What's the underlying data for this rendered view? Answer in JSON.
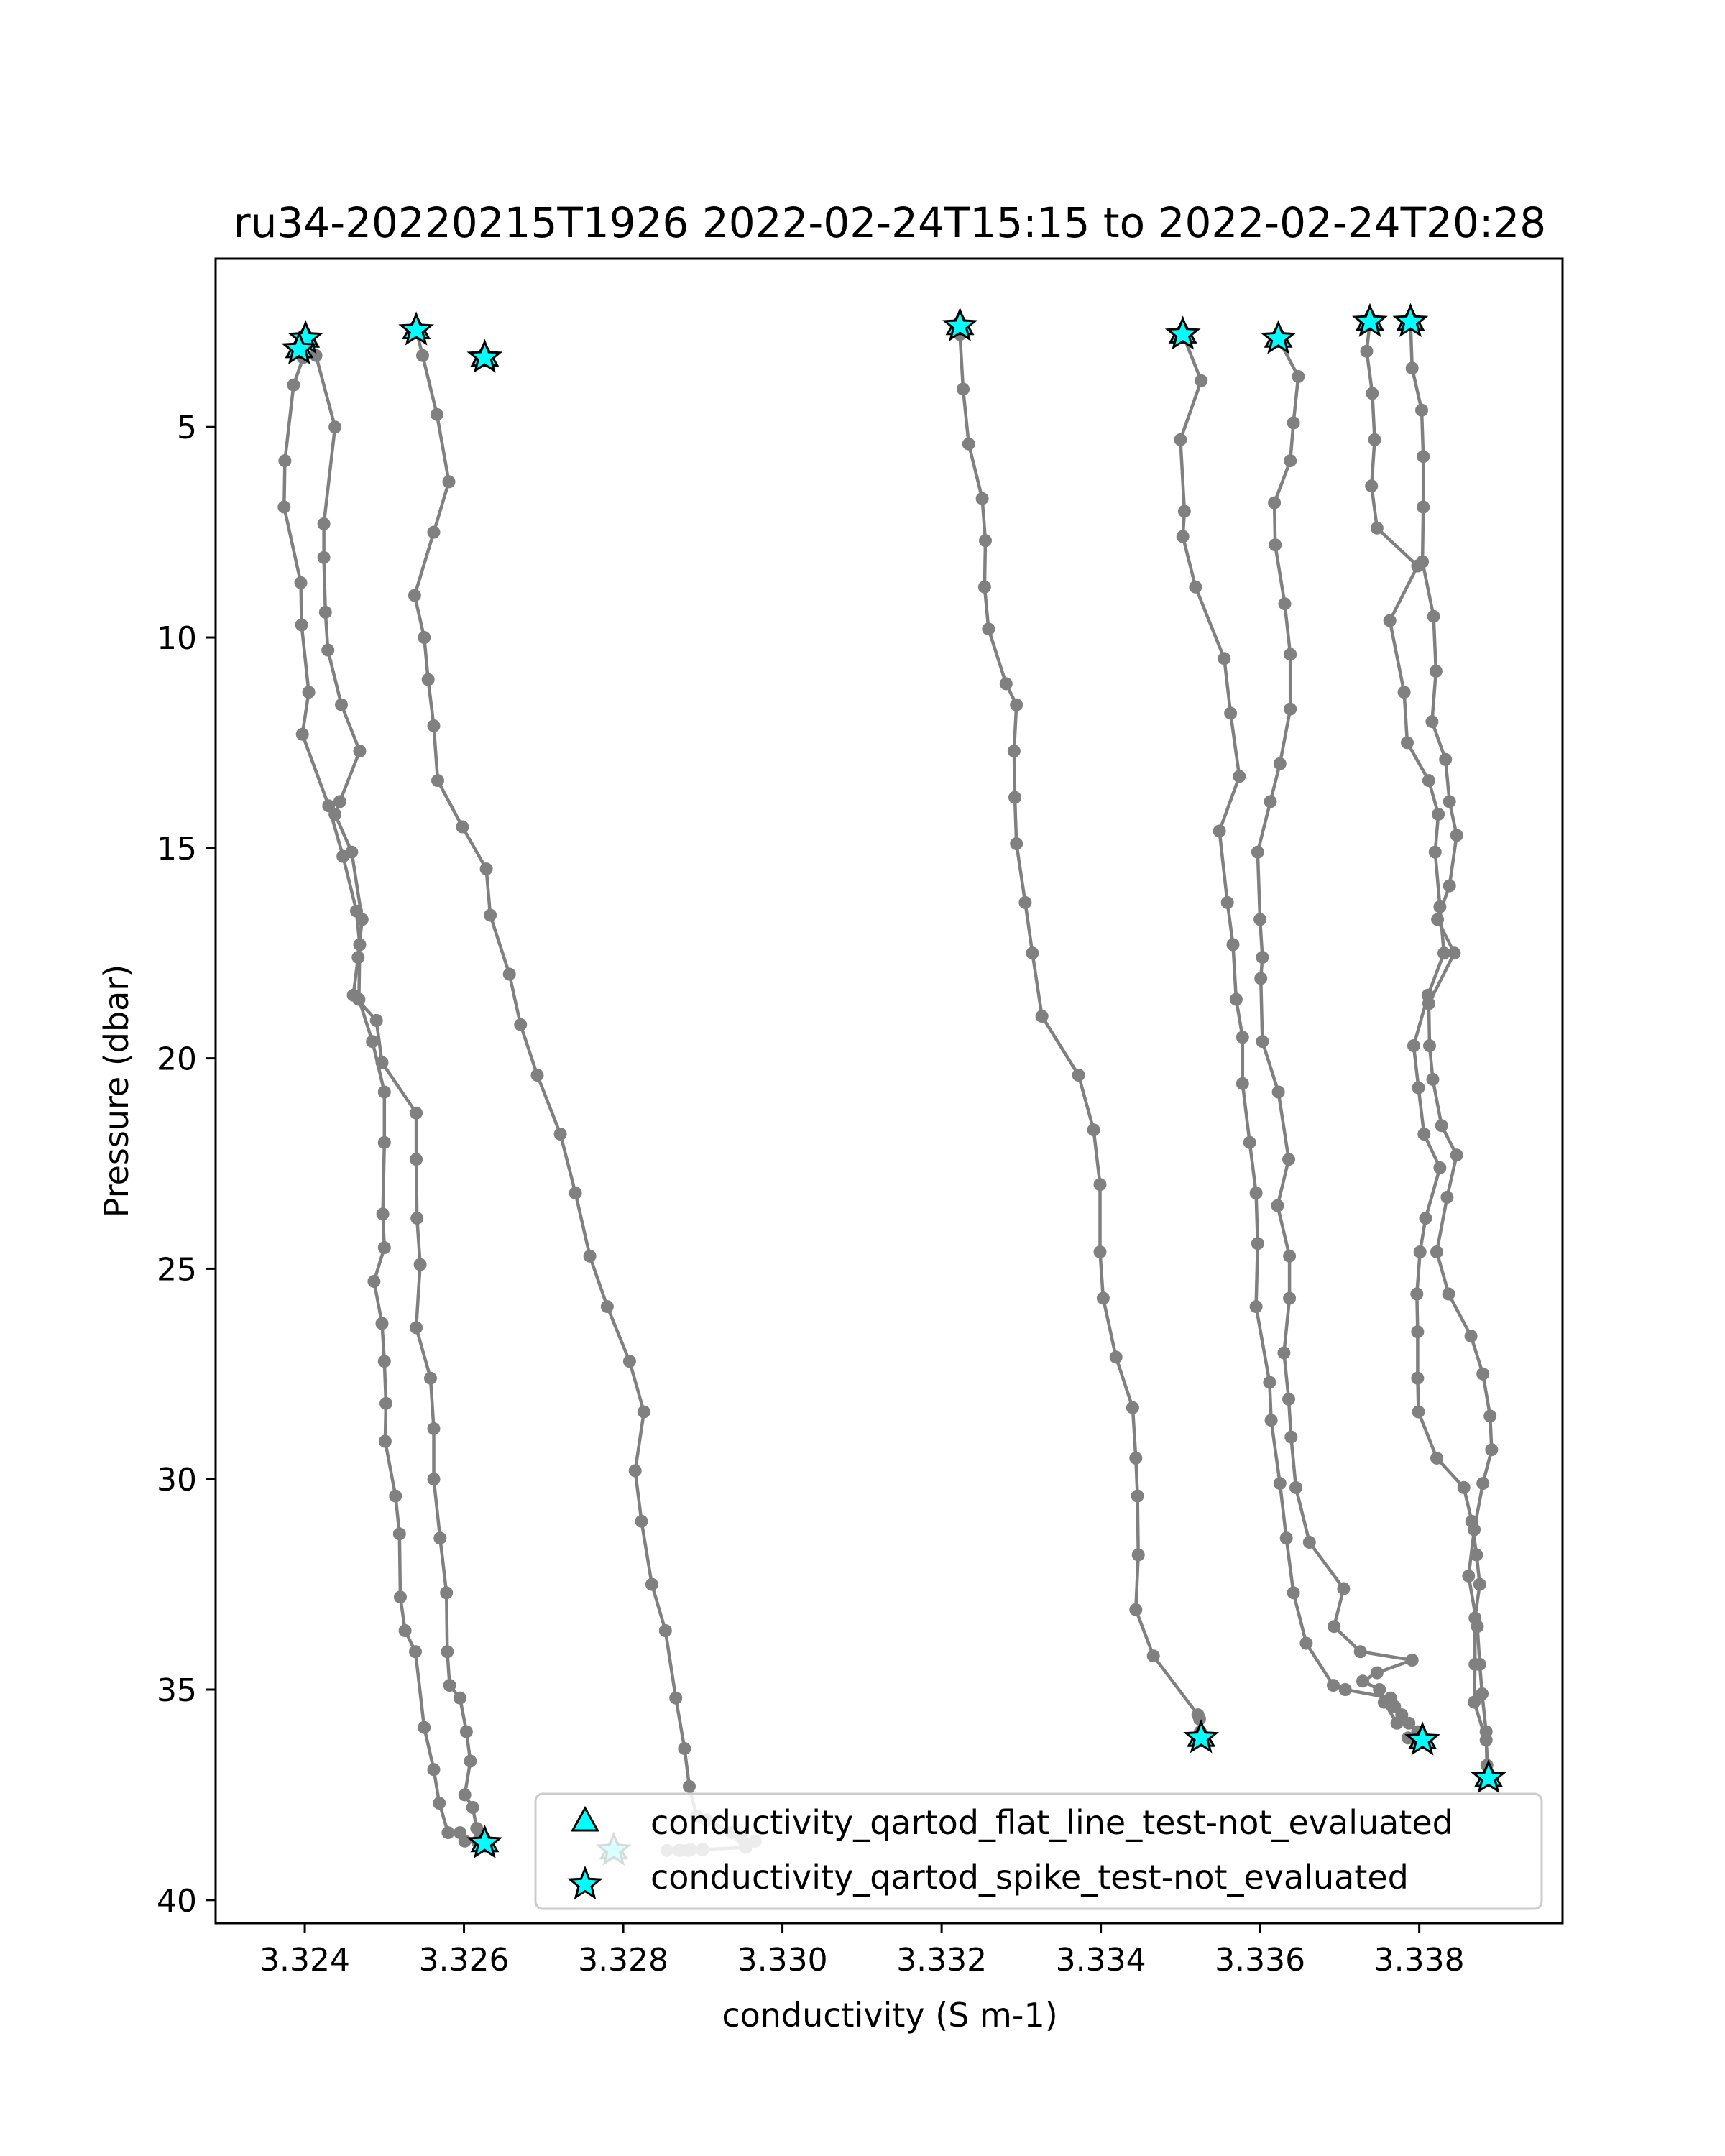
{
  "chart_data": {
    "type": "line",
    "title": "ru34-20220215T1926 2022-02-24T15:15 to 2022-02-24T20:28",
    "xlabel": "conductivity (S m-1)",
    "ylabel": "Pressure (dbar)",
    "xlim": [
      3.32288,
      3.3398
    ],
    "ylim": [
      40.55,
      1.0
    ],
    "y_inverted": true,
    "grid": false,
    "x_ticks": [
      3.324,
      3.326,
      3.328,
      3.33,
      3.332,
      3.334,
      3.336,
      3.338
    ],
    "x_tick_labels": [
      "3.324",
      "3.326",
      "3.328",
      "3.330",
      "3.332",
      "3.334",
      "3.336",
      "3.338"
    ],
    "y_ticks": [
      5,
      10,
      15,
      20,
      25,
      30,
      35,
      40
    ],
    "y_tick_labels": [
      "5",
      "10",
      "15",
      "20",
      "25",
      "30",
      "35",
      "40"
    ],
    "line_color": "#808080",
    "marker_color": "#808080",
    "flag_color": "#00ffff",
    "legend": {
      "placement": "lower right",
      "entries": [
        {
          "label": "conductivity_qartod_flat_line_test-not_evaluated",
          "marker": "triangle"
        },
        {
          "label": "conductivity_qartod_spike_test-not_evaluated",
          "marker": "star"
        }
      ]
    },
    "series": [
      {
        "x": [
          3.32393,
          3.32414,
          3.32438,
          3.32424,
          3.32424,
          3.32426,
          3.32429,
          3.32446,
          3.32469,
          3.32444,
          3.32438,
          3.32459,
          3.32472,
          3.32467,
          3.32461,
          3.3249,
          3.32497,
          3.3254,
          3.3254,
          3.32541,
          3.32545,
          3.3254,
          3.32558,
          3.32562,
          3.32562,
          3.3257,
          3.32578,
          3.32579,
          3.32582,
          3.32595,
          3.32603,
          3.32608,
          3.32601,
          3.32611,
          3.32616,
          3.3262,
          3.3262,
          3.32622,
          3.32625,
          3.32627,
          3.32626
        ],
        "y": [
          3.15,
          3.3,
          5.0,
          7.3,
          8.1,
          9.4,
          10.3,
          11.6,
          12.7,
          13.9,
          14.2,
          15.1,
          16.7,
          17.6,
          18.5,
          19.1,
          20.1,
          21.3,
          22.4,
          23.8,
          24.9,
          26.4,
          27.6,
          28.8,
          30.0,
          31.4,
          32.7,
          34.1,
          34.9,
          35.2,
          36.0,
          36.7,
          37.5,
          37.8,
          38.3,
          38.6,
          38.5,
          38.7,
          38.6,
          38.6,
          38.65
        ]
      },
      {
        "x": [
          3.32398,
          3.32386,
          3.32375,
          3.32374,
          3.32395,
          3.32396,
          3.32405,
          3.32397,
          3.3243,
          3.32448,
          3.32465,
          3.32469,
          3.32468,
          3.32485,
          3.325,
          3.325,
          3.32498,
          3.325,
          3.32487,
          3.32497,
          3.325,
          3.32502,
          3.32501,
          3.32514,
          3.32519,
          3.3252,
          3.32526,
          3.32539,
          3.3255,
          3.32562,
          3.32569,
          3.3258,
          3.32595,
          3.32601,
          3.32618
        ],
        "y": [
          3.35,
          4.0,
          5.8,
          6.9,
          8.7,
          9.7,
          11.3,
          12.3,
          14.0,
          15.2,
          16.5,
          17.3,
          18.6,
          19.6,
          20.8,
          22.0,
          23.7,
          24.5,
          25.3,
          26.3,
          27.2,
          28.2,
          29.1,
          30.4,
          31.3,
          32.8,
          33.6,
          34.1,
          35.9,
          36.9,
          37.7,
          38.4,
          38.4,
          38.6,
          38.65
        ]
      },
      {
        "x": [
          3.3254,
          3.32548,
          3.32566,
          3.32581,
          3.32562,
          3.32538,
          3.3255,
          3.32555,
          3.32562,
          3.32567,
          3.32598,
          3.32628,
          3.32633,
          3.32657,
          3.32671,
          3.32692,
          3.32721,
          3.3274,
          3.32758,
          3.3278,
          3.32808,
          3.32826,
          3.32815,
          3.32823,
          3.32836,
          3.32853,
          3.32866,
          3.32877,
          3.32883,
          3.32892,
          3.32905,
          3.32936,
          3.32948,
          3.32966,
          3.32953,
          3.32954,
          3.329,
          3.32899,
          3.32885,
          3.32881,
          3.32872,
          3.3287,
          3.32855
        ],
        "y": [
          2.7,
          3.3,
          4.7,
          6.3,
          7.5,
          9.0,
          10.0,
          11.0,
          12.1,
          13.4,
          14.5,
          15.5,
          16.6,
          18.0,
          19.2,
          20.4,
          21.8,
          23.2,
          24.7,
          25.9,
          27.2,
          28.4,
          29.8,
          31.0,
          32.5,
          33.6,
          35.2,
          36.4,
          37.3,
          38.0,
          38.1,
          38.4,
          38.5,
          38.6,
          38.7,
          38.75,
          38.8,
          38.8,
          38.8,
          38.82,
          38.82,
          38.82,
          38.82
        ]
      },
      {
        "x": [
          3.33223,
          3.33223,
          3.33227,
          3.33234,
          3.33251,
          3.33255,
          3.33254,
          3.33259,
          3.33281,
          3.33294,
          3.33291,
          3.33292,
          3.33294,
          3.33305,
          3.33314,
          3.33326,
          3.33372,
          3.33391,
          3.33399,
          3.33399,
          3.33403,
          3.33419,
          3.3344,
          3.33444,
          3.33446,
          3.33447,
          3.33444,
          3.33466,
          3.33522,
          3.33524,
          3.33525,
          3.33527,
          3.33526
        ],
        "y": [
          2.6,
          2.8,
          4.1,
          5.4,
          6.7,
          7.7,
          8.8,
          9.8,
          11.1,
          11.6,
          12.7,
          13.8,
          14.9,
          16.3,
          17.5,
          19.0,
          20.4,
          21.7,
          23.0,
          24.6,
          25.7,
          27.1,
          28.3,
          29.5,
          30.4,
          31.8,
          33.1,
          34.2,
          35.6,
          35.7,
          36.0,
          36.1,
          36.15
        ]
      },
      {
        "x": [
          3.33503,
          3.33526,
          3.335,
          3.33505,
          3.33503,
          3.33519,
          3.33555,
          3.33563,
          3.33574,
          3.33549,
          3.33559,
          3.33566,
          3.3357,
          3.33578,
          3.33578,
          3.33587,
          3.33595,
          3.33597,
          3.33595,
          3.33612,
          3.33614,
          3.33625,
          3.33633,
          3.33642,
          3.33658,
          3.33692,
          3.33707,
          3.33764,
          3.33769,
          3.33778,
          3.33787,
          3.33798,
          3.33786,
          3.33804
        ],
        "y": [
          2.8,
          3.9,
          5.3,
          7.0,
          7.6,
          8.8,
          10.5,
          11.8,
          13.3,
          14.6,
          16.3,
          17.3,
          18.6,
          19.5,
          20.6,
          22.0,
          23.2,
          24.4,
          25.9,
          27.7,
          28.6,
          30.1,
          31.4,
          32.7,
          33.9,
          34.9,
          35.0,
          35.2,
          35.4,
          35.6,
          35.8,
          36.0,
          36.15,
          36.2
        ]
      },
      {
        "x": [
          3.33623,
          3.33648,
          3.33642,
          3.33638,
          3.33618,
          3.33619,
          3.33631,
          3.33638,
          3.33638,
          3.33625,
          3.33613,
          3.33597,
          3.336,
          3.33603,
          3.33601,
          3.33603,
          3.33623,
          3.33636,
          3.33622,
          3.33637,
          3.33637,
          3.3363,
          3.33636,
          3.33639,
          3.33645,
          3.33662,
          3.33705,
          3.33693,
          3.33726,
          3.33791,
          3.33747,
          3.33729,
          3.3375,
          3.33756,
          3.33772
        ],
        "y": [
          2.9,
          3.8,
          4.9,
          5.8,
          6.8,
          7.8,
          9.2,
          10.4,
          11.7,
          13.0,
          13.9,
          15.1,
          16.7,
          17.6,
          18.1,
          19.6,
          20.8,
          22.4,
          23.5,
          24.7,
          25.7,
          27.0,
          28.1,
          29.0,
          30.2,
          31.5,
          32.6,
          33.5,
          34.1,
          34.3,
          34.6,
          34.8,
          35.0,
          35.3,
          35.8
        ]
      },
      {
        "x": [
          3.33738,
          3.33734,
          3.33741,
          3.33744,
          3.3374,
          3.33747,
          3.33798,
          3.33763,
          3.33781,
          3.33785,
          3.33812,
          3.33824,
          3.3382,
          3.33826,
          3.33831,
          3.33811,
          3.33793,
          3.33799,
          3.33806,
          3.33826,
          3.33808,
          3.33801,
          3.33797,
          3.33798,
          3.33798,
          3.33799,
          3.33822,
          3.33856,
          3.33866,
          3.33872,
          3.33876,
          3.3387,
          3.3387,
          3.33869,
          3.33884,
          3.33887
        ],
        "y": [
          2.5,
          3.2,
          4.2,
          5.3,
          6.4,
          7.4,
          8.3,
          9.6,
          11.3,
          12.5,
          13.4,
          14.2,
          15.1,
          16.4,
          17.5,
          18.5,
          19.7,
          20.7,
          21.8,
          22.6,
          23.8,
          24.6,
          25.6,
          26.5,
          27.6,
          28.4,
          29.5,
          30.2,
          31.0,
          31.8,
          32.5,
          33.3,
          34.4,
          35.3,
          36.2,
          37.1
        ]
      },
      {
        "x": [
          3.33789,
          3.33791,
          3.33803,
          3.33805,
          3.33805,
          3.33804,
          3.33818,
          3.33821,
          3.33816,
          3.33833,
          3.33838,
          3.33847,
          3.33838,
          3.33823,
          3.33844,
          3.33812,
          3.33813,
          3.33817,
          3.33828,
          3.33847,
          3.33835,
          3.33822,
          3.33837,
          3.33865,
          3.3388,
          3.33889,
          3.33891,
          3.3388,
          3.33869,
          3.33862,
          3.33873,
          3.33876,
          3.33879,
          3.33884,
          3.33885,
          3.33886
        ],
        "y": [
          2.5,
          3.6,
          4.6,
          5.7,
          6.9,
          8.2,
          9.5,
          10.8,
          12.0,
          12.9,
          13.9,
          14.7,
          15.9,
          16.7,
          17.5,
          18.7,
          19.7,
          20.5,
          21.6,
          22.3,
          23.3,
          24.6,
          25.6,
          26.6,
          27.5,
          28.5,
          29.3,
          30.1,
          31.2,
          32.3,
          33.5,
          34.4,
          35.1,
          36.0,
          36.8,
          37.1
        ]
      }
    ],
    "spike_test_not_evaluated_points": [
      {
        "x": 3.32401,
        "y": 2.9
      },
      {
        "x": 3.32393,
        "y": 3.15
      },
      {
        "x": 3.3254,
        "y": 2.7
      },
      {
        "x": 3.32626,
        "y": 3.35
      },
      {
        "x": 3.33223,
        "y": 2.6
      },
      {
        "x": 3.33503,
        "y": 2.8
      },
      {
        "x": 3.33623,
        "y": 2.9
      },
      {
        "x": 3.33738,
        "y": 2.5
      },
      {
        "x": 3.33789,
        "y": 2.5
      },
      {
        "x": 3.32626,
        "y": 38.65
      },
      {
        "x": 3.32788,
        "y": 38.82
      },
      {
        "x": 3.33526,
        "y": 36.15
      },
      {
        "x": 3.33804,
        "y": 36.2
      },
      {
        "x": 3.33887,
        "y": 37.1
      }
    ],
    "flat_line_test_not_evaluated_points": [
      {
        "x": 3.32401,
        "y": 2.9
      },
      {
        "x": 3.32393,
        "y": 3.15
      },
      {
        "x": 3.3254,
        "y": 2.7
      },
      {
        "x": 3.32626,
        "y": 3.35
      },
      {
        "x": 3.33223,
        "y": 2.6
      },
      {
        "x": 3.33503,
        "y": 2.8
      },
      {
        "x": 3.33623,
        "y": 2.9
      },
      {
        "x": 3.33738,
        "y": 2.5
      },
      {
        "x": 3.33789,
        "y": 2.5
      },
      {
        "x": 3.32626,
        "y": 38.65
      },
      {
        "x": 3.32788,
        "y": 38.82
      },
      {
        "x": 3.33526,
        "y": 36.15
      },
      {
        "x": 3.33804,
        "y": 36.2
      },
      {
        "x": 3.33887,
        "y": 37.1
      }
    ]
  }
}
